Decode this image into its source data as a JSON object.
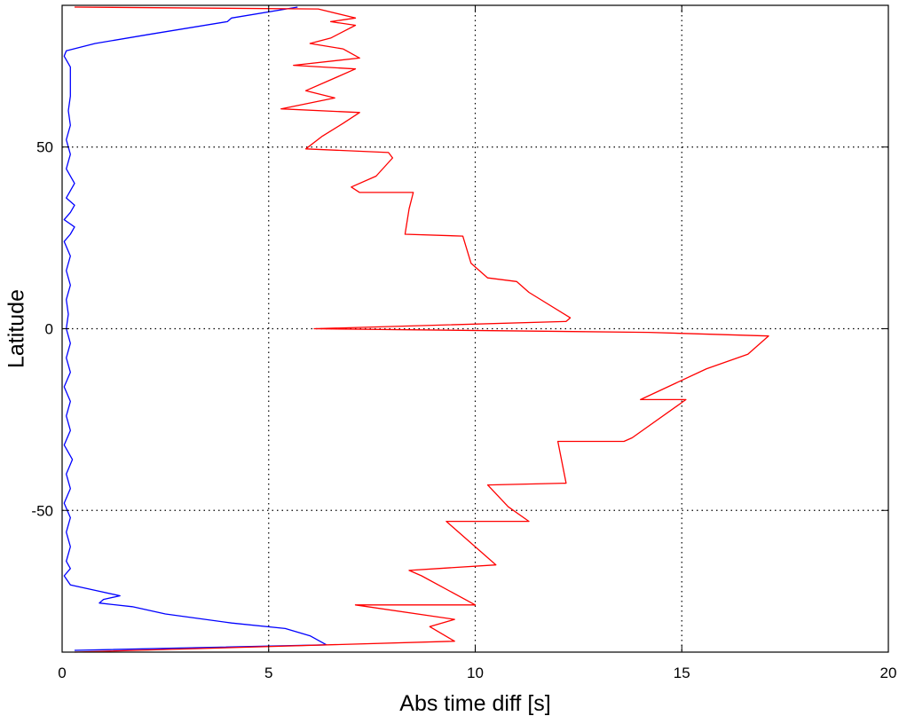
{
  "chart_data": {
    "type": "line",
    "title": "",
    "xlabel": "Abs time diff [s]",
    "ylabel": "Latitude",
    "xlim": [
      0,
      20
    ],
    "ylim": [
      -89,
      89
    ],
    "x_ticks": [
      0,
      5,
      10,
      15,
      20
    ],
    "y_ticks": [
      -50,
      0,
      50
    ],
    "grid": true,
    "grid_style": "dotted",
    "series": [
      {
        "color": "#0000ff",
        "points": [
          [
            5.7,
            88.5
          ],
          [
            4.1,
            85.5
          ],
          [
            4.0,
            84.5
          ],
          [
            2.1,
            81
          ],
          [
            0.8,
            78.5
          ],
          [
            0.1,
            76.5
          ],
          [
            0.05,
            75
          ],
          [
            0.2,
            72
          ],
          [
            0.2,
            68
          ],
          [
            0.2,
            64
          ],
          [
            0.15,
            60
          ],
          [
            0.2,
            56
          ],
          [
            0.1,
            52
          ],
          [
            0.2,
            48
          ],
          [
            0.1,
            44
          ],
          [
            0.3,
            40
          ],
          [
            0.2,
            38
          ],
          [
            0.1,
            36
          ],
          [
            0.3,
            34
          ],
          [
            0.2,
            32
          ],
          [
            0.05,
            30
          ],
          [
            0.3,
            28
          ],
          [
            0.2,
            26
          ],
          [
            0.05,
            24
          ],
          [
            0.2,
            20
          ],
          [
            0.1,
            16
          ],
          [
            0.2,
            12
          ],
          [
            0.1,
            8
          ],
          [
            0.15,
            4
          ],
          [
            0.1,
            0
          ],
          [
            0.2,
            -4
          ],
          [
            0.1,
            -8
          ],
          [
            0.2,
            -12
          ],
          [
            0.05,
            -16
          ],
          [
            0.2,
            -20
          ],
          [
            0.1,
            -24
          ],
          [
            0.2,
            -28
          ],
          [
            0.05,
            -32
          ],
          [
            0.25,
            -36
          ],
          [
            0.1,
            -40
          ],
          [
            0.2,
            -44
          ],
          [
            0.05,
            -48
          ],
          [
            0.2,
            -52
          ],
          [
            0.1,
            -56
          ],
          [
            0.2,
            -60
          ],
          [
            0.1,
            -64
          ],
          [
            0.2,
            -66
          ],
          [
            0.05,
            -68
          ],
          [
            0.2,
            -70.5
          ],
          [
            0.8,
            -72
          ],
          [
            1.4,
            -73.5
          ],
          [
            1.0,
            -74.5
          ],
          [
            0.9,
            -75.5
          ],
          [
            1.7,
            -76.5
          ],
          [
            2.5,
            -78.5
          ],
          [
            4.1,
            -81
          ],
          [
            5.4,
            -82.5
          ],
          [
            6.0,
            -84.5
          ],
          [
            6.4,
            -87
          ],
          [
            0.3,
            -88.5
          ]
        ]
      },
      {
        "color": "#ff0000",
        "points": [
          [
            0.3,
            88.5
          ],
          [
            6.2,
            88
          ],
          [
            7.1,
            85.5
          ],
          [
            6.5,
            84.5
          ],
          [
            7.1,
            83.5
          ],
          [
            6.5,
            80
          ],
          [
            6.0,
            78.5
          ],
          [
            6.8,
            77
          ],
          [
            7.2,
            74.5
          ],
          [
            5.6,
            72.5
          ],
          [
            7.1,
            71.5
          ],
          [
            6.7,
            69.5
          ],
          [
            5.9,
            65.5
          ],
          [
            6.6,
            63.5
          ],
          [
            5.3,
            60.5
          ],
          [
            7.2,
            59.5
          ],
          [
            6.8,
            56.5
          ],
          [
            6.3,
            53
          ],
          [
            5.9,
            49.5
          ],
          [
            7.9,
            48.5
          ],
          [
            8.0,
            47
          ],
          [
            7.6,
            42
          ],
          [
            7.0,
            39
          ],
          [
            7.2,
            37.5
          ],
          [
            8.5,
            37.5
          ],
          [
            8.4,
            33
          ],
          [
            8.3,
            26
          ],
          [
            9.7,
            25.5
          ],
          [
            9.9,
            18
          ],
          [
            10.3,
            14
          ],
          [
            11.0,
            13
          ],
          [
            11.3,
            10
          ],
          [
            12.3,
            3
          ],
          [
            12.2,
            2
          ],
          [
            6.1,
            0
          ],
          [
            14.2,
            -1
          ],
          [
            17.1,
            -2
          ],
          [
            16.6,
            -7
          ],
          [
            15.6,
            -11
          ],
          [
            14.0,
            -19.5
          ],
          [
            15.1,
            -19.5
          ],
          [
            13.8,
            -30
          ],
          [
            13.6,
            -31
          ],
          [
            12.0,
            -31
          ],
          [
            12.2,
            -42.5
          ],
          [
            10.3,
            -43
          ],
          [
            10.8,
            -49
          ],
          [
            11.3,
            -53
          ],
          [
            9.3,
            -53
          ],
          [
            10.5,
            -65
          ],
          [
            9.1,
            -66
          ],
          [
            8.4,
            -66.5
          ],
          [
            8.7,
            -68
          ],
          [
            10.0,
            -76
          ],
          [
            7.1,
            -76
          ],
          [
            9.5,
            -80
          ],
          [
            8.9,
            -82
          ],
          [
            9.5,
            -86
          ],
          [
            0.3,
            -89
          ]
        ]
      }
    ]
  }
}
